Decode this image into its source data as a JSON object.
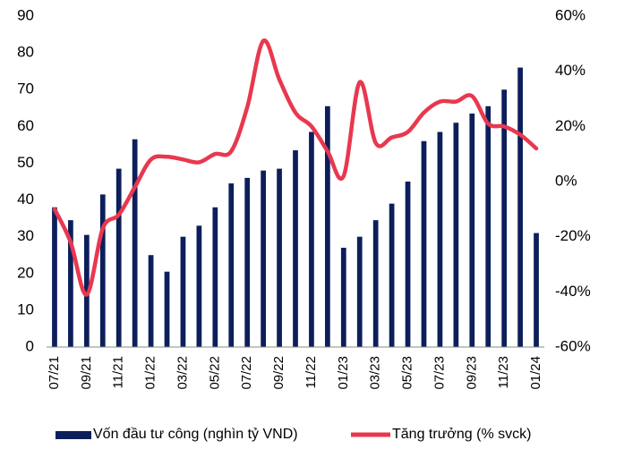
{
  "chart_data": {
    "type": "bar+line",
    "categories": [
      "07/21",
      null,
      "09/21",
      null,
      "11/21",
      null,
      "01/22",
      null,
      "03/22",
      null,
      "05/22",
      null,
      "07/22",
      null,
      "09/22",
      null,
      "11/22",
      null,
      "01/23",
      null,
      "03/23",
      null,
      "05/23",
      null,
      "07/23",
      null,
      "09/23",
      null,
      "11/23",
      null,
      "01/24"
    ],
    "series": [
      {
        "name": "Vốn đầu tư công (nghìn tỷ VND)",
        "type": "bar",
        "color": "#0c1f5b",
        "values": [
          38,
          34.5,
          30.5,
          41.5,
          48.5,
          56.5,
          25,
          20.5,
          30,
          33,
          38,
          44.5,
          46,
          48,
          48.5,
          53.5,
          58.5,
          65.5,
          27,
          30,
          34.5,
          39,
          45,
          56,
          58.5,
          61,
          63.5,
          65.5,
          70,
          76,
          31
        ]
      },
      {
        "name": "Tăng trưởng (% svck)",
        "type": "line",
        "axis": "y2",
        "color": "#e8384f",
        "values": [
          -10,
          -22,
          -41,
          -17,
          -12,
          -2,
          8,
          9,
          8,
          7,
          10,
          11,
          27,
          51,
          37,
          25,
          20,
          11,
          2,
          36,
          14,
          16,
          18,
          25,
          29,
          29,
          31,
          21,
          20,
          17,
          12
        ]
      }
    ],
    "ylim": [
      0,
      90
    ],
    "yticks": [
      0,
      10,
      20,
      30,
      40,
      50,
      60,
      70,
      80,
      90
    ],
    "y2lim": [
      -60,
      60
    ],
    "y2ticks": [
      {
        "value": -60,
        "label": "-60%"
      },
      {
        "value": -40,
        "label": "-40%"
      },
      {
        "value": -20,
        "label": "-20%"
      },
      {
        "value": 0,
        "label": "0%"
      },
      {
        "value": 20,
        "label": "20%"
      },
      {
        "value": 40,
        "label": "40%"
      },
      {
        "value": 60,
        "label": "60%"
      }
    ],
    "legend": "bottom"
  }
}
